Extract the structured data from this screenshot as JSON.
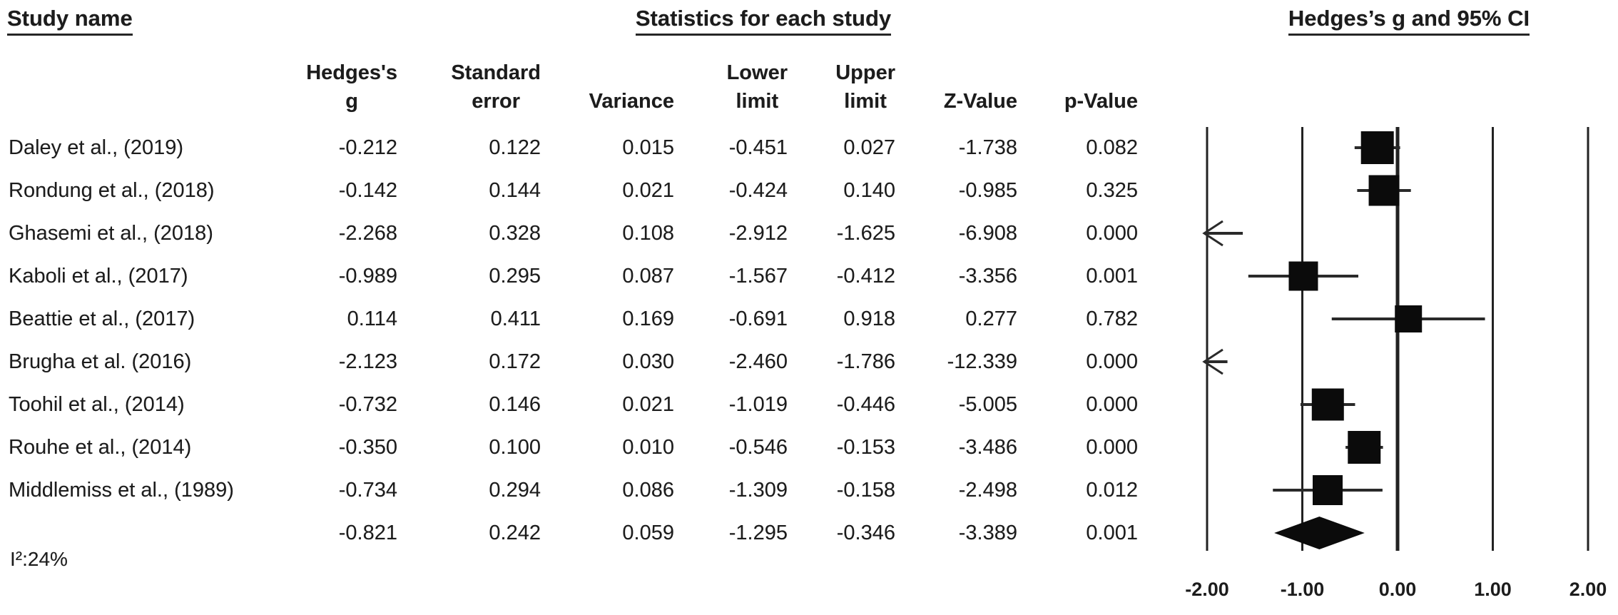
{
  "titles": {
    "study_name": "Study name",
    "statistics": "Statistics for each study",
    "plot": "Hedges’s g and 95% CI"
  },
  "columns": [
    {
      "key": "g",
      "label": "Hedges's\ng"
    },
    {
      "key": "se",
      "label": "Standard\nerror"
    },
    {
      "key": "variance",
      "label": "Variance"
    },
    {
      "key": "lower",
      "label": "Lower\nlimit"
    },
    {
      "key": "upper",
      "label": "Upper\nlimit"
    },
    {
      "key": "z",
      "label": "Z-Value"
    },
    {
      "key": "p",
      "label": "p-Value"
    }
  ],
  "footer": {
    "heterogeneity": "I²:24%"
  },
  "chart_data": {
    "type": "forest",
    "title": "Hedges’s g and 95% CI",
    "effect_measure": "Hedges's g",
    "xlim": [
      -2,
      2
    ],
    "ticks": [
      {
        "value": -2,
        "label": "-2.00"
      },
      {
        "value": -1,
        "label": "-1.00"
      },
      {
        "value": 0,
        "label": "0.00"
      },
      {
        "value": 1,
        "label": "1.00"
      },
      {
        "value": 2,
        "label": "2.00"
      }
    ],
    "studies": [
      {
        "name": "Daley et al., (2019)",
        "g": -0.212,
        "se": 0.122,
        "variance": 0.015,
        "lower": -0.451,
        "upper": 0.027,
        "z": -1.738,
        "p": 0.082,
        "marker_size": 46
      },
      {
        "name": "Rondung et al., (2018)",
        "g": -0.142,
        "se": 0.144,
        "variance": 0.021,
        "lower": -0.424,
        "upper": 0.14,
        "z": -0.985,
        "p": 0.325,
        "marker_size": 43
      },
      {
        "name": "Ghasemi et al., (2018)",
        "g": -2.268,
        "se": 0.328,
        "variance": 0.108,
        "lower": -2.912,
        "upper": -1.625,
        "z": -6.908,
        "p": 0.0,
        "marker_size": 0
      },
      {
        "name": "Kaboli et al., (2017)",
        "g": -0.989,
        "se": 0.295,
        "variance": 0.087,
        "lower": -1.567,
        "upper": -0.412,
        "z": -3.356,
        "p": 0.001,
        "marker_size": 41
      },
      {
        "name": "Beattie et al., (2017)",
        "g": 0.114,
        "se": 0.411,
        "variance": 0.169,
        "lower": -0.691,
        "upper": 0.918,
        "z": 0.277,
        "p": 0.782,
        "marker_size": 38
      },
      {
        "name": "Brugha et al. (2016)",
        "g": -2.123,
        "se": 0.172,
        "variance": 0.03,
        "lower": -2.46,
        "upper": -1.786,
        "z": -12.339,
        "p": 0.0,
        "marker_size": 0
      },
      {
        "name": "Toohil et al., (2014)",
        "g": -0.732,
        "se": 0.146,
        "variance": 0.021,
        "lower": -1.019,
        "upper": -0.446,
        "z": -5.005,
        "p": 0.0,
        "marker_size": 45
      },
      {
        "name": "Rouhe et al., (2014)",
        "g": -0.35,
        "se": 0.1,
        "variance": 0.01,
        "lower": -0.546,
        "upper": -0.153,
        "z": -3.486,
        "p": 0.0,
        "marker_size": 46
      },
      {
        "name": "Middlemiss et al., (1989)",
        "g": -0.734,
        "se": 0.294,
        "variance": 0.086,
        "lower": -1.309,
        "upper": -0.158,
        "z": -2.498,
        "p": 0.012,
        "marker_size": 42
      }
    ],
    "summary": {
      "name": "",
      "g": -0.821,
      "se": 0.242,
      "variance": 0.059,
      "lower": -1.295,
      "upper": -0.346,
      "z": -3.389,
      "p": 0.001
    },
    "heterogeneity": "I²:24%"
  }
}
